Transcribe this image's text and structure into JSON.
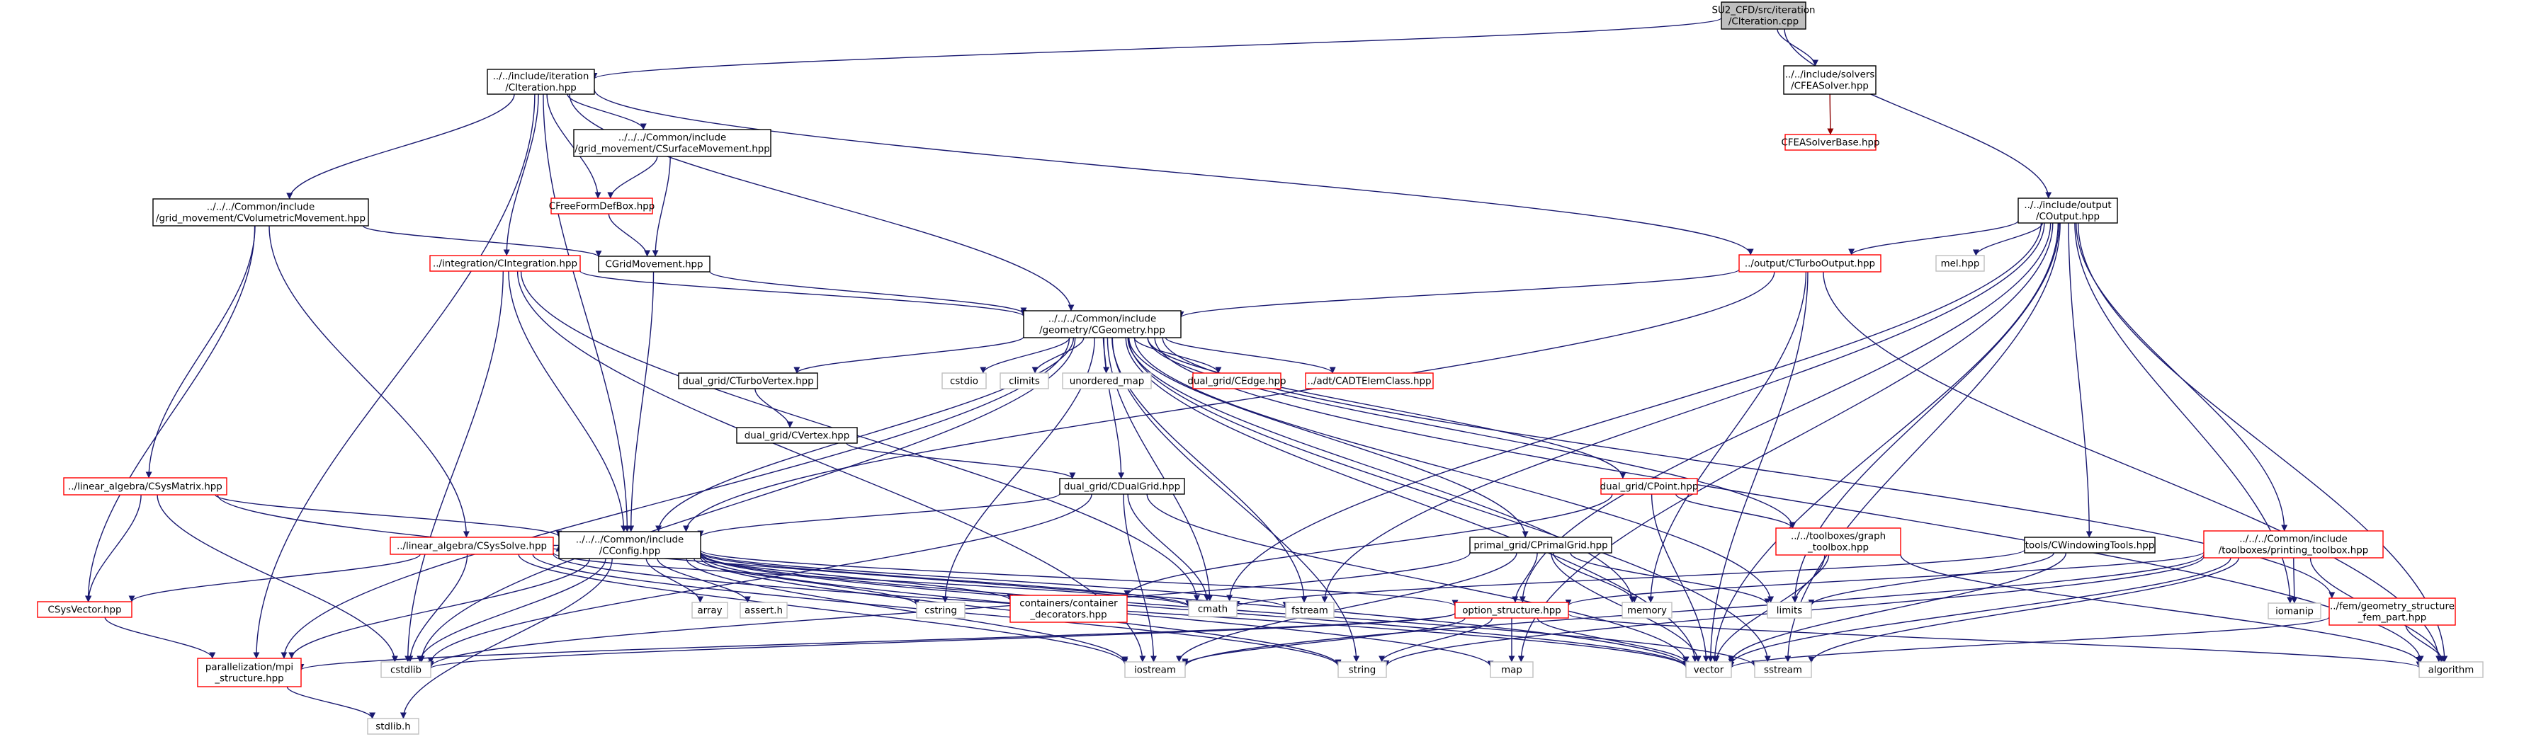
{
  "colors": {
    "root_fill": "#bfbfbf",
    "node_fill": "#ffffff",
    "border_documented": "#000000",
    "border_truncated": "#ff0000",
    "border_external": "#bfbfbf",
    "edge_main": "#191970",
    "edge_red": "#8b0000"
  },
  "nodes": [
    {
      "id": "root",
      "lines": [
        "SU2_CFD/src/iteration",
        "/CIteration.cpp"
      ],
      "kind": "root"
    },
    {
      "id": "citer",
      "lines": [
        "../../include/iteration",
        "/CIteration.hpp"
      ],
      "kind": "doc"
    },
    {
      "id": "cfeasolver",
      "lines": [
        "../../include/solvers",
        "/CFEASolver.hpp"
      ],
      "kind": "doc"
    },
    {
      "id": "cfeasolverbase",
      "lines": [
        "CFEASolverBase.hpp"
      ],
      "kind": "trunc"
    },
    {
      "id": "csurf",
      "lines": [
        "../../../Common/include",
        "/grid_movement/CSurfaceMovement.hpp"
      ],
      "kind": "doc"
    },
    {
      "id": "cvol",
      "lines": [
        "../../../Common/include",
        "/grid_movement/CVolumetricMovement.hpp"
      ],
      "kind": "doc"
    },
    {
      "id": "cffd",
      "lines": [
        "CFreeFormDefBox.hpp"
      ],
      "kind": "trunc"
    },
    {
      "id": "cgridmov",
      "lines": [
        "CGridMovement.hpp"
      ],
      "kind": "doc"
    },
    {
      "id": "cinteg",
      "lines": [
        "../integration/CIntegration.hpp"
      ],
      "kind": "trunc"
    },
    {
      "id": "coutput",
      "lines": [
        "../../include/output",
        "/COutput.hpp"
      ],
      "kind": "doc"
    },
    {
      "id": "cturbooutput",
      "lines": [
        "../output/CTurboOutput.hpp"
      ],
      "kind": "trunc"
    },
    {
      "id": "melhpp",
      "lines": [
        "mel.hpp"
      ],
      "kind": "ext"
    },
    {
      "id": "cgeom",
      "lines": [
        "../../../Common/include",
        "/geometry/CGeometry.hpp"
      ],
      "kind": "doc"
    },
    {
      "id": "cstdio",
      "lines": [
        "cstdio"
      ],
      "kind": "ext"
    },
    {
      "id": "climits",
      "lines": [
        "climits"
      ],
      "kind": "ext"
    },
    {
      "id": "unordered",
      "lines": [
        "unordered_map"
      ],
      "kind": "ext"
    },
    {
      "id": "cedge",
      "lines": [
        "dual_grid/CEdge.hpp"
      ],
      "kind": "trunc"
    },
    {
      "id": "cadt",
      "lines": [
        "../adt/CADTElemClass.hpp"
      ],
      "kind": "trunc"
    },
    {
      "id": "cturbovertex",
      "lines": [
        "dual_grid/CTurboVertex.hpp"
      ],
      "kind": "doc"
    },
    {
      "id": "cvertex",
      "lines": [
        "dual_grid/CVertex.hpp"
      ],
      "kind": "doc"
    },
    {
      "id": "cdualgrid",
      "lines": [
        "dual_grid/CDualGrid.hpp"
      ],
      "kind": "doc"
    },
    {
      "id": "cpoint",
      "lines": [
        "dual_grid/CPoint.hpp"
      ],
      "kind": "trunc"
    },
    {
      "id": "csysmatrix",
      "lines": [
        "../linear_algebra/CSysMatrix.hpp"
      ],
      "kind": "trunc"
    },
    {
      "id": "csyssolve",
      "lines": [
        "../linear_algebra/CSysSolve.hpp"
      ],
      "kind": "trunc"
    },
    {
      "id": "cconfig",
      "lines": [
        "../../../Common/include",
        "/CConfig.hpp"
      ],
      "kind": "doc"
    },
    {
      "id": "cprimalgrid",
      "lines": [
        "primal_grid/CPrimalGrid.hpp"
      ],
      "kind": "doc"
    },
    {
      "id": "graphtoolbox",
      "lines": [
        "../../toolboxes/graph",
        "_toolbox.hpp"
      ],
      "kind": "trunc"
    },
    {
      "id": "cwindowing",
      "lines": [
        "tools/CWindowingTools.hpp"
      ],
      "kind": "doc"
    },
    {
      "id": "printtoolbox",
      "lines": [
        "../../../Common/include",
        "/toolboxes/printing_toolbox.hpp"
      ],
      "kind": "trunc"
    },
    {
      "id": "csysvector",
      "lines": [
        "CSysVector.hpp"
      ],
      "kind": "trunc"
    },
    {
      "id": "array",
      "lines": [
        "array"
      ],
      "kind": "ext"
    },
    {
      "id": "asserth",
      "lines": [
        "assert.h"
      ],
      "kind": "ext"
    },
    {
      "id": "cstring",
      "lines": [
        "cstring"
      ],
      "kind": "ext"
    },
    {
      "id": "containers",
      "lines": [
        "containers/container",
        "_decorators.hpp"
      ],
      "kind": "trunc"
    },
    {
      "id": "cmath",
      "lines": [
        "cmath"
      ],
      "kind": "ext"
    },
    {
      "id": "fstream",
      "lines": [
        "fstream"
      ],
      "kind": "ext"
    },
    {
      "id": "optstruct",
      "lines": [
        "option_structure.hpp"
      ],
      "kind": "trunc"
    },
    {
      "id": "memory",
      "lines": [
        "memory"
      ],
      "kind": "ext"
    },
    {
      "id": "limits",
      "lines": [
        "limits"
      ],
      "kind": "ext"
    },
    {
      "id": "iomanip",
      "lines": [
        "iomanip"
      ],
      "kind": "ext"
    },
    {
      "id": "femgeom",
      "lines": [
        "../fem/geometry_structure",
        "_fem_part.hpp"
      ],
      "kind": "trunc"
    },
    {
      "id": "parallel",
      "lines": [
        "parallelization/mpi",
        "_structure.hpp"
      ],
      "kind": "trunc"
    },
    {
      "id": "cstdlib",
      "lines": [
        "cstdlib"
      ],
      "kind": "ext"
    },
    {
      "id": "iostream",
      "lines": [
        "iostream"
      ],
      "kind": "ext"
    },
    {
      "id": "string",
      "lines": [
        "string"
      ],
      "kind": "ext"
    },
    {
      "id": "map",
      "lines": [
        "map"
      ],
      "kind": "ext"
    },
    {
      "id": "vector",
      "lines": [
        "vector"
      ],
      "kind": "ext"
    },
    {
      "id": "sstream",
      "lines": [
        "sstream"
      ],
      "kind": "ext"
    },
    {
      "id": "algorithm",
      "lines": [
        "algorithm"
      ],
      "kind": "ext"
    },
    {
      "id": "stdlibh",
      "lines": [
        "stdlib.h"
      ],
      "kind": "ext"
    }
  ],
  "edges": [
    [
      "root",
      "citer"
    ],
    [
      "root",
      "cfeasolver"
    ],
    [
      "root",
      "coutput"
    ],
    [
      "cfeasolver",
      "cfeasolverbase",
      "red"
    ],
    [
      "citer",
      "csurf"
    ],
    [
      "citer",
      "cvol"
    ],
    [
      "citer",
      "cffd"
    ],
    [
      "citer",
      "cinteg"
    ],
    [
      "citer",
      "cgeom"
    ],
    [
      "citer",
      "cconfig"
    ],
    [
      "citer",
      "cturbooutput"
    ],
    [
      "citer",
      "parallel"
    ],
    [
      "csurf",
      "cffd"
    ],
    [
      "csurf",
      "cgridmov"
    ],
    [
      "cffd",
      "cgridmov"
    ],
    [
      "cvol",
      "cgridmov"
    ],
    [
      "cvol",
      "csysmatrix"
    ],
    [
      "cvol",
      "csyssolve"
    ],
    [
      "cvol",
      "csysvector"
    ],
    [
      "cgridmov",
      "cgeom"
    ],
    [
      "cgridmov",
      "cconfig"
    ],
    [
      "cinteg",
      "cgeom"
    ],
    [
      "cinteg",
      "cconfig"
    ],
    [
      "cinteg",
      "cstdlib"
    ],
    [
      "cinteg",
      "iostream"
    ],
    [
      "cinteg",
      "cmath"
    ],
    [
      "cturbooutput",
      "cgeom"
    ],
    [
      "cturbooutput",
      "cconfig"
    ],
    [
      "cturbooutput",
      "memory"
    ],
    [
      "cturbooutput",
      "vector"
    ],
    [
      "cturbooutput",
      "algorithm"
    ],
    [
      "coutput",
      "cturbooutput"
    ],
    [
      "coutput",
      "melhpp"
    ],
    [
      "coutput",
      "cwindowing"
    ],
    [
      "coutput",
      "printtoolbox"
    ],
    [
      "coutput",
      "fstream"
    ],
    [
      "coutput",
      "cmath"
    ],
    [
      "coutput",
      "limits"
    ],
    [
      "coutput",
      "iomanip"
    ],
    [
      "coutput",
      "vector"
    ],
    [
      "coutput",
      "sstream"
    ],
    [
      "coutput",
      "map"
    ],
    [
      "coutput",
      "optstruct"
    ],
    [
      "coutput",
      "algorithm"
    ],
    [
      "cgeom",
      "cstdio"
    ],
    [
      "cgeom",
      "climits"
    ],
    [
      "cgeom",
      "unordered"
    ],
    [
      "cgeom",
      "cedge"
    ],
    [
      "cgeom",
      "cadt"
    ],
    [
      "cgeom",
      "cturbovertex"
    ],
    [
      "cgeom",
      "cdualgrid"
    ],
    [
      "cgeom",
      "cpoint"
    ],
    [
      "cgeom",
      "cprimalgrid"
    ],
    [
      "cgeom",
      "graphtoolbox"
    ],
    [
      "cgeom",
      "cconfig"
    ],
    [
      "cgeom",
      "parallel"
    ],
    [
      "cgeom",
      "cstdlib"
    ],
    [
      "cgeom",
      "cstring"
    ],
    [
      "cgeom",
      "cmath"
    ],
    [
      "cgeom",
      "fstream"
    ],
    [
      "cgeom",
      "string"
    ],
    [
      "cgeom",
      "vector"
    ],
    [
      "cgeom",
      "memory"
    ],
    [
      "cgeom",
      "limits"
    ],
    [
      "cgeom",
      "sstream"
    ],
    [
      "cgeom",
      "algorithm"
    ],
    [
      "cgeom",
      "femgeom"
    ],
    [
      "cturbovertex",
      "cvertex"
    ],
    [
      "cvertex",
      "cdualgrid"
    ],
    [
      "cdualgrid",
      "cconfig"
    ],
    [
      "cdualgrid",
      "cmath"
    ],
    [
      "cdualgrid",
      "iostream"
    ],
    [
      "cdualgrid",
      "vector"
    ],
    [
      "cdualgrid",
      "cstdlib"
    ],
    [
      "cpoint",
      "containers"
    ],
    [
      "cpoint",
      "graphtoolbox"
    ],
    [
      "cpoint",
      "vector"
    ],
    [
      "cprimalgrid",
      "optstruct"
    ],
    [
      "cprimalgrid",
      "iostream"
    ],
    [
      "cprimalgrid",
      "vector"
    ],
    [
      "cprimalgrid",
      "limits"
    ],
    [
      "cprimalgrid",
      "memory"
    ],
    [
      "cprimalgrid",
      "cstdlib"
    ],
    [
      "graphtoolbox",
      "limits"
    ],
    [
      "graphtoolbox",
      "vector"
    ],
    [
      "graphtoolbox",
      "algorithm"
    ],
    [
      "cwindowing",
      "limits"
    ],
    [
      "cwindowing",
      "cmath"
    ],
    [
      "cwindowing",
      "vector"
    ],
    [
      "printtoolbox",
      "optstruct"
    ],
    [
      "printtoolbox",
      "iostream"
    ],
    [
      "printtoolbox",
      "iomanip"
    ],
    [
      "printtoolbox",
      "string"
    ],
    [
      "printtoolbox",
      "vector"
    ],
    [
      "printtoolbox",
      "sstream"
    ],
    [
      "printtoolbox",
      "algorithm"
    ],
    [
      "femgeom",
      "vector"
    ],
    [
      "femgeom",
      "algorithm"
    ],
    [
      "csysmatrix",
      "cconfig"
    ],
    [
      "csysmatrix",
      "csysvector"
    ],
    [
      "csysmatrix",
      "cstdlib"
    ],
    [
      "csysmatrix",
      "vector"
    ],
    [
      "csyssolve",
      "cconfig"
    ],
    [
      "csyssolve",
      "csysvector"
    ],
    [
      "csyssolve",
      "cmath"
    ],
    [
      "csyssolve",
      "cstdlib"
    ],
    [
      "csyssolve",
      "iostream"
    ],
    [
      "csyssolve",
      "string"
    ],
    [
      "csyssolve",
      "vector"
    ],
    [
      "csysvector",
      "parallel"
    ],
    [
      "cconfig",
      "parallel"
    ],
    [
      "cconfig",
      "iostream"
    ],
    [
      "cconfig",
      "cstdlib"
    ],
    [
      "cconfig",
      "fstream"
    ],
    [
      "cconfig",
      "sstream"
    ],
    [
      "cconfig",
      "string"
    ],
    [
      "cconfig",
      "cstring"
    ],
    [
      "cconfig",
      "vector"
    ],
    [
      "cconfig",
      "array"
    ],
    [
      "cconfig",
      "stdlibh"
    ],
    [
      "cconfig",
      "cmath"
    ],
    [
      "cconfig",
      "map"
    ],
    [
      "cconfig",
      "asserth"
    ],
    [
      "cconfig",
      "containers"
    ],
    [
      "cconfig",
      "optstruct"
    ],
    [
      "optstruct",
      "parallel"
    ],
    [
      "optstruct",
      "iostream"
    ],
    [
      "optstruct",
      "cstdlib"
    ],
    [
      "optstruct",
      "map"
    ],
    [
      "optstruct",
      "string"
    ],
    [
      "optstruct",
      "vector"
    ],
    [
      "optstruct",
      "algorithm"
    ],
    [
      "parallel",
      "stdlibh"
    ]
  ]
}
